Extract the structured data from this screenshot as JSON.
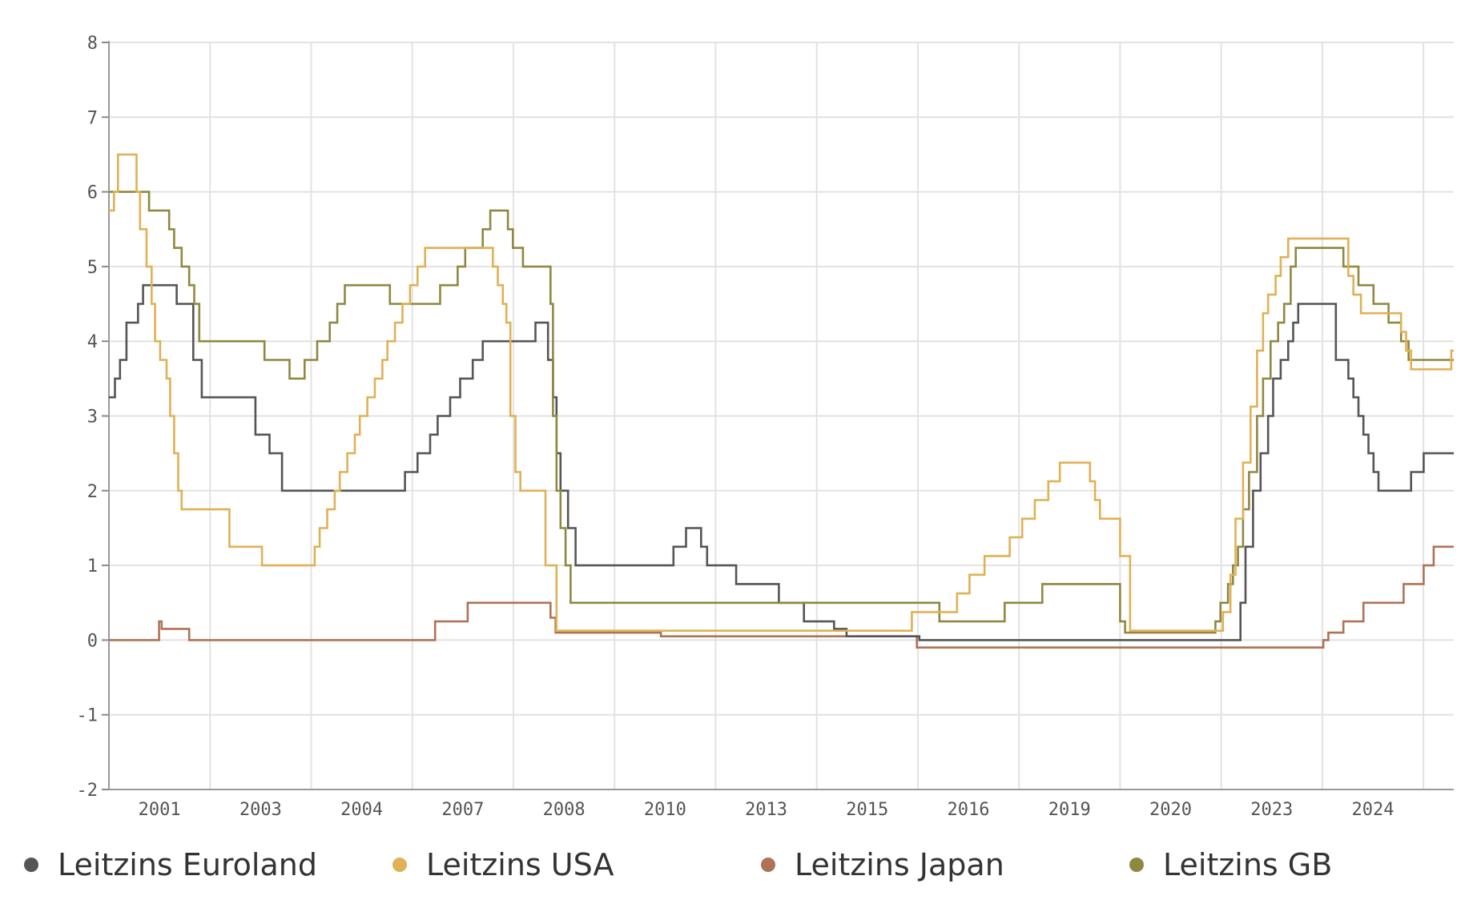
{
  "chart_data": {
    "type": "line",
    "ylim": [
      -2,
      8
    ],
    "y_ticks": [
      "8",
      "7",
      "6",
      "5",
      "4",
      "3",
      "2",
      "1",
      "0",
      "-1",
      "-2"
    ],
    "x_tick_labels": [
      "2001",
      "2003",
      "2004",
      "2007",
      "2008",
      "2010",
      "2013",
      "2015",
      "2016",
      "2019",
      "2020",
      "2023",
      "2024"
    ],
    "grid": true,
    "legend_position": "bottom",
    "series": [
      {
        "name": "Leitzins Euroland",
        "color": "#555555",
        "points": [
          [
            2000.0,
            3.25
          ],
          [
            2000.12,
            3.5
          ],
          [
            2000.22,
            3.75
          ],
          [
            2000.35,
            4.25
          ],
          [
            2000.58,
            4.5
          ],
          [
            2000.68,
            4.75
          ],
          [
            2001.35,
            4.5
          ],
          [
            2001.68,
            3.75
          ],
          [
            2001.85,
            3.25
          ],
          [
            2002.92,
            2.75
          ],
          [
            2003.2,
            2.5
          ],
          [
            2003.45,
            2.0
          ],
          [
            2005.9,
            2.25
          ],
          [
            2006.15,
            2.5
          ],
          [
            2006.4,
            2.75
          ],
          [
            2006.55,
            3.0
          ],
          [
            2006.8,
            3.25
          ],
          [
            2007.0,
            3.5
          ],
          [
            2007.25,
            3.75
          ],
          [
            2007.45,
            4.0
          ],
          [
            2008.5,
            4.25
          ],
          [
            2008.75,
            3.75
          ],
          [
            2008.85,
            3.25
          ],
          [
            2008.92,
            2.5
          ],
          [
            2009.0,
            2.0
          ],
          [
            2009.15,
            1.5
          ],
          [
            2009.3,
            1.0
          ],
          [
            2011.25,
            1.25
          ],
          [
            2011.5,
            1.5
          ],
          [
            2011.8,
            1.25
          ],
          [
            2011.92,
            1.0
          ],
          [
            2012.5,
            0.75
          ],
          [
            2013.35,
            0.5
          ],
          [
            2013.85,
            0.25
          ],
          [
            2014.45,
            0.15
          ],
          [
            2014.7,
            0.05
          ],
          [
            2016.15,
            0.0
          ],
          [
            2022.55,
            0.5
          ],
          [
            2022.65,
            1.25
          ],
          [
            2022.8,
            2.0
          ],
          [
            2022.95,
            2.5
          ],
          [
            2023.1,
            3.0
          ],
          [
            2023.2,
            3.5
          ],
          [
            2023.35,
            3.75
          ],
          [
            2023.5,
            4.0
          ],
          [
            2023.6,
            4.25
          ],
          [
            2023.7,
            4.5
          ],
          [
            2024.45,
            3.75
          ],
          [
            2024.7,
            3.5
          ],
          [
            2024.8,
            3.25
          ],
          [
            2024.9,
            3.0
          ],
          [
            2025.0,
            2.75
          ],
          [
            2025.1,
            2.5
          ],
          [
            2025.2,
            2.25
          ],
          [
            2025.3,
            2.0
          ],
          [
            2025.95,
            2.25
          ],
          [
            2026.2,
            2.5
          ]
        ]
      },
      {
        "name": "Leitzins USA",
        "color": "#e0b155",
        "points": [
          [
            2000.0,
            5.75
          ],
          [
            2000.1,
            6.0
          ],
          [
            2000.18,
            6.5
          ],
          [
            2000.55,
            6.0
          ],
          [
            2000.62,
            5.5
          ],
          [
            2000.75,
            5.0
          ],
          [
            2000.85,
            4.5
          ],
          [
            2000.92,
            4.0
          ],
          [
            2001.02,
            3.75
          ],
          [
            2001.15,
            3.5
          ],
          [
            2001.22,
            3.0
          ],
          [
            2001.3,
            2.5
          ],
          [
            2001.38,
            2.0
          ],
          [
            2001.45,
            1.75
          ],
          [
            2002.4,
            1.25
          ],
          [
            2003.05,
            1.0
          ],
          [
            2004.1,
            1.25
          ],
          [
            2004.2,
            1.5
          ],
          [
            2004.35,
            1.75
          ],
          [
            2004.5,
            2.0
          ],
          [
            2004.6,
            2.25
          ],
          [
            2004.75,
            2.5
          ],
          [
            2004.9,
            2.75
          ],
          [
            2005.0,
            3.0
          ],
          [
            2005.15,
            3.25
          ],
          [
            2005.3,
            3.5
          ],
          [
            2005.45,
            3.75
          ],
          [
            2005.55,
            4.0
          ],
          [
            2005.7,
            4.25
          ],
          [
            2005.85,
            4.5
          ],
          [
            2006.0,
            4.75
          ],
          [
            2006.15,
            5.0
          ],
          [
            2006.3,
            5.25
          ],
          [
            2007.65,
            5.0
          ],
          [
            2007.75,
            4.75
          ],
          [
            2007.85,
            4.5
          ],
          [
            2007.92,
            4.25
          ],
          [
            2008.0,
            3.0
          ],
          [
            2008.1,
            2.25
          ],
          [
            2008.2,
            2.0
          ],
          [
            2008.7,
            1.0
          ],
          [
            2008.92,
            0.125
          ],
          [
            2016.0,
            0.375
          ],
          [
            2016.9,
            0.625
          ],
          [
            2017.15,
            0.875
          ],
          [
            2017.45,
            1.125
          ],
          [
            2017.95,
            1.375
          ],
          [
            2018.2,
            1.625
          ],
          [
            2018.45,
            1.875
          ],
          [
            2018.72,
            2.125
          ],
          [
            2018.95,
            2.375
          ],
          [
            2019.55,
            2.125
          ],
          [
            2019.65,
            1.875
          ],
          [
            2019.75,
            1.625
          ],
          [
            2020.15,
            1.125
          ],
          [
            2020.35,
            0.125
          ],
          [
            2022.2,
            0.375
          ],
          [
            2022.35,
            0.875
          ],
          [
            2022.45,
            1.625
          ],
          [
            2022.6,
            2.375
          ],
          [
            2022.75,
            3.125
          ],
          [
            2022.88,
            3.875
          ],
          [
            2023.0,
            4.375
          ],
          [
            2023.1,
            4.625
          ],
          [
            2023.25,
            4.875
          ],
          [
            2023.35,
            5.125
          ],
          [
            2023.5,
            5.375
          ],
          [
            2024.7,
            4.875
          ],
          [
            2024.8,
            4.625
          ],
          [
            2024.95,
            4.375
          ],
          [
            2025.75,
            4.125
          ],
          [
            2025.85,
            3.875
          ],
          [
            2025.95,
            3.625
          ],
          [
            2026.7,
            3.625
          ],
          [
            2026.75,
            3.875
          ]
        ]
      },
      {
        "name": "Leitzins Japan",
        "color": "#b07256",
        "points": [
          [
            2000.0,
            0.0
          ],
          [
            2000.5,
            0.0
          ],
          [
            2001.0,
            0.25
          ],
          [
            2001.05,
            0.15
          ],
          [
            2001.6,
            0.0
          ],
          [
            2006.5,
            0.25
          ],
          [
            2007.15,
            0.5
          ],
          [
            2008.8,
            0.3
          ],
          [
            2008.9,
            0.1
          ],
          [
            2010.0,
            0.1
          ],
          [
            2011.0,
            0.05
          ],
          [
            2016.1,
            -0.1
          ],
          [
            2024.2,
            0.0
          ],
          [
            2024.3,
            0.1
          ],
          [
            2024.6,
            0.25
          ],
          [
            2025.0,
            0.5
          ],
          [
            2025.8,
            0.75
          ],
          [
            2026.2,
            1.0
          ],
          [
            2026.4,
            1.25
          ]
        ]
      },
      {
        "name": "Leitzins GB",
        "color": "#8f8840",
        "points": [
          [
            2000.0,
            6.0
          ],
          [
            2000.8,
            5.75
          ],
          [
            2001.2,
            5.5
          ],
          [
            2001.3,
            5.25
          ],
          [
            2001.45,
            5.0
          ],
          [
            2001.6,
            4.75
          ],
          [
            2001.7,
            4.5
          ],
          [
            2001.8,
            4.0
          ],
          [
            2003.1,
            3.75
          ],
          [
            2003.6,
            3.5
          ],
          [
            2003.9,
            3.75
          ],
          [
            2004.15,
            4.0
          ],
          [
            2004.4,
            4.25
          ],
          [
            2004.55,
            4.5
          ],
          [
            2004.7,
            4.75
          ],
          [
            2005.6,
            4.5
          ],
          [
            2006.6,
            4.75
          ],
          [
            2006.95,
            5.0
          ],
          [
            2007.1,
            5.25
          ],
          [
            2007.45,
            5.5
          ],
          [
            2007.6,
            5.75
          ],
          [
            2007.95,
            5.5
          ],
          [
            2008.05,
            5.25
          ],
          [
            2008.25,
            5.0
          ],
          [
            2008.8,
            4.5
          ],
          [
            2008.85,
            3.0
          ],
          [
            2008.92,
            2.0
          ],
          [
            2009.0,
            1.5
          ],
          [
            2009.1,
            1.0
          ],
          [
            2009.2,
            0.5
          ],
          [
            2016.55,
            0.25
          ],
          [
            2017.85,
            0.5
          ],
          [
            2018.6,
            0.75
          ],
          [
            2020.15,
            0.25
          ],
          [
            2020.25,
            0.1
          ],
          [
            2022.05,
            0.25
          ],
          [
            2022.15,
            0.5
          ],
          [
            2022.3,
            0.75
          ],
          [
            2022.4,
            1.0
          ],
          [
            2022.5,
            1.25
          ],
          [
            2022.6,
            1.75
          ],
          [
            2022.72,
            2.25
          ],
          [
            2022.88,
            3.0
          ],
          [
            2023.0,
            3.5
          ],
          [
            2023.15,
            4.0
          ],
          [
            2023.3,
            4.25
          ],
          [
            2023.42,
            4.5
          ],
          [
            2023.55,
            5.0
          ],
          [
            2023.65,
            5.25
          ],
          [
            2024.6,
            5.0
          ],
          [
            2024.9,
            4.75
          ],
          [
            2025.2,
            4.5
          ],
          [
            2025.5,
            4.25
          ],
          [
            2025.75,
            4.0
          ],
          [
            2025.9,
            3.75
          ],
          [
            2026.75,
            3.75
          ]
        ]
      }
    ]
  },
  "legend": {
    "items": [
      {
        "label": "Leitzins Euroland",
        "color": "#555555"
      },
      {
        "label": "Leitzins USA",
        "color": "#e0b155"
      },
      {
        "label": "Leitzins Japan",
        "color": "#b07256"
      },
      {
        "label": "Leitzins GB",
        "color": "#8f8840"
      }
    ]
  }
}
